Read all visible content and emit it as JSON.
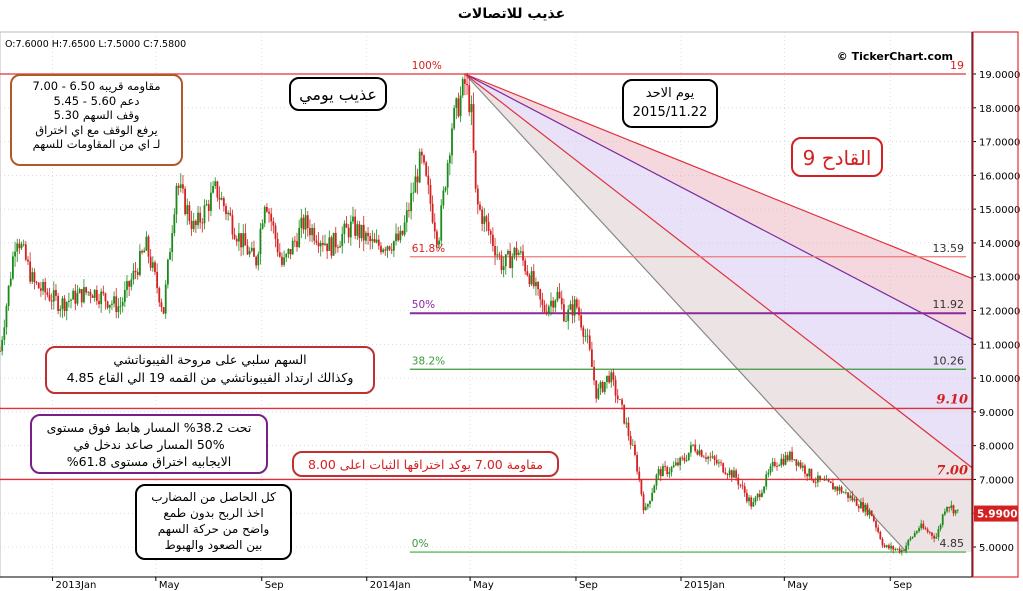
{
  "chart_data": {
    "type": "candlestick",
    "title": "عذيب للاتصالات",
    "ohlc_readout": "O:7.6000  H:7.6500  L:7.5000  C:7.5800",
    "watermark": "© TickerChart.com",
    "ylim": [
      4.2,
      19.9
    ],
    "y_ticks": [
      "19.0000",
      "18.0000",
      "17.0000",
      "16.0000",
      "15.0000",
      "14.0000",
      "13.0000",
      "12.0000",
      "11.0000",
      "10.0000",
      "9.0000",
      "8.0000",
      "7.0000",
      "6.0000",
      "5.0000"
    ],
    "x_ticks": [
      "2013Jan",
      "May",
      "Sep",
      "2014Jan",
      "May",
      "Sep",
      "2015Jan",
      "May",
      "Sep"
    ],
    "last_price": "5.9900",
    "price_path": [
      [
        "2012-11-01",
        10.8
      ],
      [
        "2012-11-20",
        14.3
      ],
      [
        "2012-12-10",
        12.8
      ],
      [
        "2013-01-10",
        12.2
      ],
      [
        "2013-02-15",
        12.6
      ],
      [
        "2013-03-20",
        12.1
      ],
      [
        "2013-04-20",
        13.9
      ],
      [
        "2013-05-10",
        12.0
      ],
      [
        "2013-05-25",
        15.8
      ],
      [
        "2013-06-15",
        14.4
      ],
      [
        "2013-07-10",
        15.6
      ],
      [
        "2013-08-05",
        14.2
      ],
      [
        "2013-08-25",
        13.4
      ],
      [
        "2013-09-05",
        15.4
      ],
      [
        "2013-09-25",
        13.3
      ],
      [
        "2013-10-20",
        14.6
      ],
      [
        "2013-11-20",
        13.9
      ],
      [
        "2013-12-15",
        14.5
      ],
      [
        "2014-01-10",
        13.9
      ],
      [
        "2014-02-10",
        14.1
      ],
      [
        "2014-03-05",
        16.5
      ],
      [
        "2014-03-25",
        14.1
      ],
      [
        "2014-04-10",
        17.5
      ],
      [
        "2014-04-25",
        18.7
      ],
      [
        "2014-05-02",
        18.0
      ],
      [
        "2014-05-08",
        15.2
      ],
      [
        "2014-05-15",
        14.8
      ],
      [
        "2014-05-25",
        14.2
      ],
      [
        "2014-06-08",
        13.3
      ],
      [
        "2014-06-25",
        13.8
      ],
      [
        "2014-07-10",
        13.0
      ],
      [
        "2014-07-25",
        12.0
      ],
      [
        "2014-08-10",
        12.5
      ],
      [
        "2014-08-20",
        11.8
      ],
      [
        "2014-09-01",
        12.2
      ],
      [
        "2014-09-15",
        11.0
      ],
      [
        "2014-09-25",
        9.5
      ],
      [
        "2014-10-10",
        10.1
      ],
      [
        "2014-10-25",
        9.0
      ],
      [
        "2014-11-10",
        7.5
      ],
      [
        "2014-11-20",
        6.0
      ],
      [
        "2014-12-05",
        7.2
      ],
      [
        "2014-12-20",
        7.3
      ],
      [
        "2015-01-05",
        7.6
      ],
      [
        "2015-01-15",
        8.0
      ],
      [
        "2015-02-05",
        7.6
      ],
      [
        "2015-03-05",
        7.1
      ],
      [
        "2015-03-25",
        6.2
      ],
      [
        "2015-04-20",
        7.5
      ],
      [
        "2015-05-10",
        7.7
      ],
      [
        "2015-06-05",
        7.0
      ],
      [
        "2015-07-05",
        6.7
      ],
      [
        "2015-07-20",
        6.4
      ],
      [
        "2015-08-10",
        6.0
      ],
      [
        "2015-08-25",
        5.0
      ],
      [
        "2015-09-15",
        4.9
      ],
      [
        "2015-10-05",
        5.6
      ],
      [
        "2015-10-25",
        5.3
      ],
      [
        "2015-11-05",
        6.3
      ],
      [
        "2015-11-20",
        5.99
      ]
    ],
    "fib_retracement": [
      {
        "pct": "100%",
        "value": 19.0,
        "label": "19",
        "color": "#e0303a"
      },
      {
        "pct": "61.8%",
        "value": 13.59,
        "label": "13.59",
        "color": "#f07878"
      },
      {
        "pct": "50%",
        "value": 11.92,
        "label": "11.92",
        "color": "#8a2aa0"
      },
      {
        "pct": "38.2%",
        "value": 10.26,
        "label": "10.26",
        "color": "#3a9a3a"
      },
      {
        "pct": "0%",
        "value": 4.85,
        "label": "4.85",
        "color": "#3aa83a"
      }
    ],
    "horizontal_levels": [
      {
        "value": 9.1,
        "label": "9.10",
        "color": "#e0303a"
      },
      {
        "value": 7.0,
        "label": "7.00",
        "color": "#e0303a"
      }
    ],
    "fan_origin": {
      "date": "2014-04-25",
      "value": 19.0
    }
  },
  "annotations": {
    "title_box": "عذيب يومي",
    "date_box": [
      "يوم الاحد",
      "2015/11.22"
    ],
    "levels_box": [
      "مقاومه قريبه 6.50 - 7.00",
      "دعم     5.60  -  5.45",
      "وقف السهم 5.30",
      "يرفع الوقف مع اي اختراق",
      "لـ اي من المقاومات للسهم"
    ],
    "brand_box": "القادح 9",
    "fan_box": [
      "السهم سلبي على مروحة الفيبوناتشي",
      "وكذالك ارتداد الفيبوناتشي من القمه 19 الي القاع 4.85"
    ],
    "path_box": [
      "تحت 38.2% المسار هابط فوق مستوى",
      "50% المسار صاعد ندخل في",
      "الايجابيه اختراق مستوى 61.8%"
    ],
    "resistance_box": "مقاومة 7.00 يوكد اختراقها الثبات اعلى 8.00",
    "advice_box": [
      "كل الحاصل من المضارب",
      "اخذ الربح بدون طمع",
      "واضح من حركة السهم",
      "بين الصعود والهبوط"
    ]
  },
  "colors": {
    "up": "#1a8a1a",
    "down": "#d42020",
    "axis_red": "#e0303a",
    "grid": "#c8c8c8"
  }
}
